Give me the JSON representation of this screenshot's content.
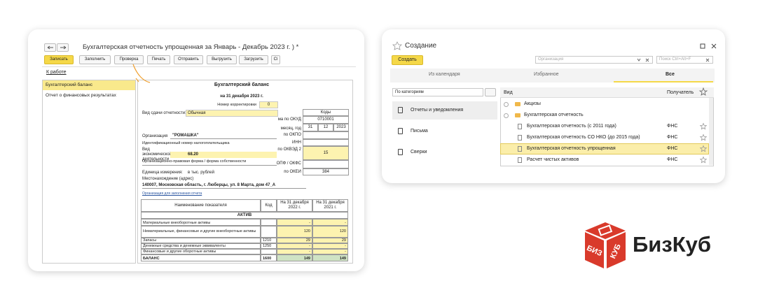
{
  "report_window": {
    "title": "Бухгалтерская отчетность упрощенная за Январь - Декабрь 2023 г. ) *",
    "toolbar": [
      "Записать",
      "Заполнить",
      "Проверка",
      "Печать",
      "Отправить",
      "Выгрузить",
      "Загрузить",
      "Сі"
    ],
    "link": "К работе",
    "sections": [
      "Бухгалтерский баланс",
      "Отчет о финансовых результатах"
    ],
    "form": {
      "heading": "Бухгалтерский баланс",
      "date": "на 31 декабря 2023 г.",
      "correction_label": "Номер корректировки",
      "correction": "0",
      "submission_label": "Вид сдачи отчетности:",
      "submission": "Обычная",
      "codes_header": "Коды",
      "okud_label": "ма по ОКУД",
      "okud": "0710001",
      "date_label": "месяц, год",
      "day": "31",
      "month": "12",
      "year": "2023",
      "okpo_label": "по ОКПО",
      "inn_label": "ИНН",
      "org_label": "Организация",
      "org": "\"РОМАШКА\"",
      "inn_full_label": "Идентификационный номер налогоплательщика",
      "activity_label": "Вид экономической деятельности",
      "activity": "68.20",
      "okved_label": "по ОКВЭД 2",
      "okved": "15",
      "opf_label": "Организационно-правовая форма / форма собственности",
      "okfs_label": "ОПФ / ОКФС",
      "unit_label": "Единица измерения:",
      "unit": "в тыс. рублей",
      "okei_label": "по ОКЕИ",
      "okei": "384",
      "address_label": "Местонахождение (адрес)",
      "address": "140007, Московская область, г. Люберцы, ул. 8 Марта, дом 47_А",
      "fill_link": "Организация для заполнения отчета"
    },
    "table": {
      "headers": [
        "Наименование показателя",
        "Код",
        "На 31 декабря 2022 г.",
        "На 31 декабря 2021 г."
      ],
      "section": "АКТИВ",
      "rows": [
        [
          "Материальные внеоборотные активы",
          null,
          "-",
          "-"
        ],
        [
          "Нематериальные, финансовые и другие внеоборотные активы",
          null,
          "120",
          "120"
        ],
        [
          "Запасы",
          "1210",
          "29",
          "29"
        ],
        [
          "Денежные средства и денежные эквиваленты",
          "1250",
          "-",
          "-"
        ],
        [
          "Финансовые и другие оборотные активы",
          null,
          "-",
          "-"
        ],
        [
          "БАЛАНС",
          "1600",
          "149",
          "149"
        ]
      ]
    }
  },
  "create_window": {
    "title": "Создание",
    "create_button": "Создать",
    "org_placeholder": "Организация",
    "search_placeholder": "Поиск Ctrl+Alt+F",
    "tabs": [
      "Из календаря",
      "Избранное",
      "Все"
    ],
    "filter": "По категориям",
    "categories": [
      "Отчеты и уведомления",
      "Письма",
      "Сверки"
    ],
    "columns": [
      "Вид",
      "Получатель"
    ],
    "folders": [
      "Акцизы",
      "Бухгалтерская отчетность"
    ],
    "reports": [
      {
        "name": "Бухгалтерская отчетность (с 2011 года)",
        "recipient": "ФНС"
      },
      {
        "name": "Бухгалтерская отчетность СО НКО (до 2015 года)",
        "recipient": "ФНС"
      },
      {
        "name": "Бухгалтерская отчетность упрощенная",
        "recipient": "ФНС"
      },
      {
        "name": "Расчет чистых активов",
        "recipient": "ФНС"
      }
    ]
  },
  "logo": {
    "name": "БизКуб",
    "left_face": "БИЗ",
    "right_face": "КУБ"
  }
}
